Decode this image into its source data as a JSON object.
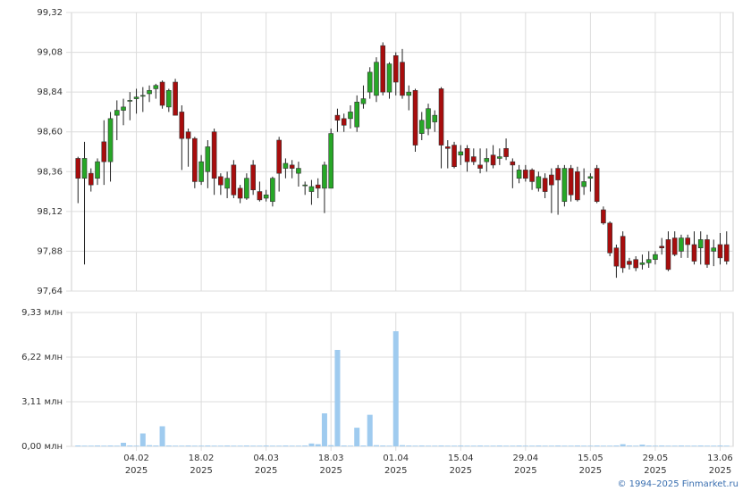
{
  "chart_data": [
    {
      "type": "candlestick",
      "xlim": [
        -1,
        101
      ],
      "xticks": [
        {
          "value": 9,
          "label": "04.02",
          "year": "2025"
        },
        {
          "value": 19,
          "label": "18.02",
          "year": "2025"
        },
        {
          "value": 29,
          "label": "04.03",
          "year": "2025"
        },
        {
          "value": 39,
          "label": "18.03",
          "year": "2025"
        },
        {
          "value": 49,
          "label": "01.04",
          "year": "2025"
        },
        {
          "value": 59,
          "label": "15.04",
          "year": "2025"
        },
        {
          "value": 69,
          "label": "29.04",
          "year": "2025"
        },
        {
          "value": 79,
          "label": "15.05",
          "year": "2025"
        },
        {
          "value": 89,
          "label": "29.05",
          "year": "2025"
        },
        {
          "value": 99,
          "label": "13.06",
          "year": "2025"
        }
      ],
      "ylim": [
        97.64,
        99.32
      ],
      "yticks": [
        {
          "value": 97.64,
          "label": "97,64"
        },
        {
          "value": 97.88,
          "label": "97,88"
        },
        {
          "value": 98.12,
          "label": "98,12"
        },
        {
          "value": 98.36,
          "label": "98,36"
        },
        {
          "value": 98.6,
          "label": "98,60"
        },
        {
          "value": 98.84,
          "label": "98,84"
        },
        {
          "value": 99.08,
          "label": "99,08"
        },
        {
          "value": 99.32,
          "label": "99,32"
        }
      ],
      "grid": true,
      "up_color": "#27a727",
      "down_color": "#a80d0d",
      "open": [
        98.44,
        98.32,
        98.35,
        98.32,
        98.54,
        98.42,
        98.7,
        98.73,
        98.79,
        98.8,
        98.82,
        98.83,
        98.86,
        98.9,
        98.75,
        98.9,
        98.72,
        98.6,
        98.56,
        98.3,
        98.36,
        98.6,
        98.33,
        98.26,
        98.4,
        98.26,
        98.2,
        98.4,
        98.24,
        98.2,
        98.18,
        98.55,
        98.38,
        98.4,
        98.35,
        98.28,
        98.24,
        98.28,
        98.26,
        98.26,
        98.7,
        98.68,
        98.68,
        98.63,
        98.77,
        98.84,
        98.82,
        99.12,
        98.84,
        99.06,
        99.02,
        98.82,
        98.85,
        98.59,
        98.62,
        98.66,
        98.86,
        98.51,
        98.52,
        98.46,
        98.5,
        98.45,
        98.4,
        98.42,
        98.46,
        98.44,
        98.5,
        98.42,
        98.32,
        98.37,
        98.37,
        98.26,
        98.32,
        98.34,
        98.38,
        98.18,
        98.38,
        98.36,
        98.27,
        98.32,
        98.38,
        98.13,
        98.05,
        97.9,
        97.97,
        97.82,
        97.83,
        97.8,
        97.81,
        97.83,
        97.91,
        97.95,
        97.96,
        97.88,
        97.96,
        97.92,
        97.9,
        97.95,
        97.88,
        97.92,
        97.92
      ],
      "high": [
        98.45,
        98.54,
        98.38,
        98.44,
        98.67,
        98.72,
        98.79,
        98.8,
        98.84,
        98.86,
        98.87,
        98.88,
        98.89,
        98.91,
        98.86,
        98.92,
        98.76,
        98.62,
        98.57,
        98.46,
        98.55,
        98.62,
        98.35,
        98.36,
        98.43,
        98.28,
        98.35,
        98.43,
        98.3,
        98.25,
        98.33,
        98.57,
        98.44,
        98.43,
        98.42,
        98.3,
        98.31,
        98.32,
        98.42,
        98.62,
        98.74,
        98.71,
        98.76,
        98.82,
        98.88,
        98.99,
        99.05,
        99.14,
        99.02,
        99.08,
        99.1,
        98.88,
        98.86,
        98.72,
        98.77,
        98.73,
        98.87,
        98.55,
        98.54,
        98.52,
        98.52,
        98.5,
        98.5,
        98.5,
        98.52,
        98.5,
        98.56,
        98.44,
        98.4,
        98.4,
        98.38,
        98.36,
        98.35,
        98.38,
        98.4,
        98.4,
        98.4,
        98.39,
        98.38,
        98.35,
        98.4,
        98.15,
        98.06,
        97.92,
        98.0,
        97.84,
        97.85,
        97.86,
        97.88,
        97.88,
        97.96,
        98.0,
        98.0,
        97.98,
        97.98,
        98.0,
        98.0,
        97.98,
        97.95,
        97.99,
        98.0
      ],
      "low": [
        98.17,
        97.8,
        98.24,
        98.28,
        98.28,
        98.3,
        98.55,
        98.64,
        98.67,
        98.71,
        98.72,
        98.78,
        98.8,
        98.74,
        98.72,
        98.7,
        98.37,
        98.39,
        98.26,
        98.28,
        98.26,
        98.22,
        98.22,
        98.2,
        98.2,
        98.17,
        98.19,
        98.22,
        98.18,
        98.18,
        98.15,
        98.24,
        98.32,
        98.32,
        98.27,
        98.22,
        98.16,
        98.2,
        98.11,
        98.26,
        98.6,
        98.6,
        98.62,
        98.6,
        98.74,
        98.8,
        98.78,
        98.82,
        98.8,
        98.82,
        98.8,
        98.73,
        98.48,
        98.55,
        98.58,
        98.6,
        98.38,
        98.38,
        98.38,
        98.4,
        98.36,
        98.4,
        98.35,
        98.36,
        98.38,
        98.4,
        98.43,
        98.26,
        98.29,
        98.3,
        98.25,
        98.24,
        98.2,
        98.11,
        98.1,
        98.15,
        98.18,
        98.18,
        98.22,
        98.24,
        98.17,
        98.04,
        97.85,
        97.72,
        97.75,
        97.77,
        97.76,
        97.77,
        97.78,
        97.8,
        97.86,
        97.76,
        97.85,
        97.84,
        97.84,
        97.8,
        97.8,
        97.78,
        97.79,
        97.8,
        97.8
      ],
      "close": [
        98.32,
        98.44,
        98.28,
        98.42,
        98.42,
        98.68,
        98.73,
        98.75,
        98.79,
        98.81,
        98.82,
        98.85,
        98.88,
        98.76,
        98.85,
        98.7,
        98.56,
        98.56,
        98.3,
        98.42,
        98.51,
        98.32,
        98.28,
        98.32,
        98.22,
        98.2,
        98.32,
        98.25,
        98.19,
        98.22,
        98.32,
        98.35,
        98.41,
        98.38,
        98.38,
        98.28,
        98.27,
        98.26,
        98.4,
        98.59,
        98.67,
        98.64,
        98.72,
        98.78,
        98.8,
        98.96,
        99.02,
        98.84,
        99.01,
        98.9,
        98.82,
        98.84,
        98.52,
        98.67,
        98.74,
        98.7,
        98.52,
        98.5,
        98.39,
        98.48,
        98.42,
        98.42,
        98.38,
        98.44,
        98.4,
        98.45,
        98.45,
        98.4,
        98.37,
        98.32,
        98.3,
        98.33,
        98.24,
        98.28,
        98.31,
        98.38,
        98.22,
        98.19,
        98.3,
        98.33,
        98.18,
        98.05,
        97.87,
        97.79,
        97.78,
        97.8,
        97.78,
        97.81,
        97.83,
        97.86,
        97.9,
        97.77,
        97.86,
        97.96,
        97.92,
        97.82,
        97.95,
        97.8,
        97.9,
        97.84,
        97.82
      ]
    },
    {
      "type": "bar",
      "ylim": [
        0,
        9.33
      ],
      "yticks": [
        {
          "value": 0,
          "label": "0,00 млн"
        },
        {
          "value": 3.11,
          "label": "3,11 млн"
        },
        {
          "value": 6.22,
          "label": "6,22 млн"
        },
        {
          "value": 9.33,
          "label": "9,33 млн"
        }
      ],
      "color": "#9fcbef",
      "values": [
        0.06,
        0.05,
        0.05,
        0.06,
        0.05,
        0.06,
        0.05,
        0.25,
        0.06,
        0.05,
        0.9,
        0.08,
        0.06,
        1.4,
        0.06,
        0.05,
        0.05,
        0.06,
        0.05,
        0.05,
        0.06,
        0.05,
        0.05,
        0.06,
        0.05,
        0.05,
        0.06,
        0.05,
        0.05,
        0.06,
        0.05,
        0.05,
        0.06,
        0.05,
        0.05,
        0.06,
        0.2,
        0.15,
        2.3,
        0.08,
        6.72,
        0.06,
        0.05,
        1.3,
        0.06,
        2.2,
        0.08,
        0.06,
        0.05,
        8.02,
        0.08,
        0.06,
        0.05,
        0.06,
        0.05,
        0.05,
        0.06,
        0.05,
        0.05,
        0.06,
        0.05,
        0.05,
        0.06,
        0.05,
        0.05,
        0.06,
        0.05,
        0.05,
        0.06,
        0.05,
        0.05,
        0.06,
        0.05,
        0.05,
        0.06,
        0.05,
        0.05,
        0.06,
        0.05,
        0.05,
        0.06,
        0.05,
        0.05,
        0.06,
        0.15,
        0.06,
        0.05,
        0.12,
        0.06,
        0.05,
        0.06,
        0.05,
        0.05,
        0.06,
        0.05,
        0.05,
        0.06,
        0.05,
        0.05,
        0.06,
        0.05
      ]
    }
  ],
  "footer": "© 1994–2025 Finmarket.ru"
}
